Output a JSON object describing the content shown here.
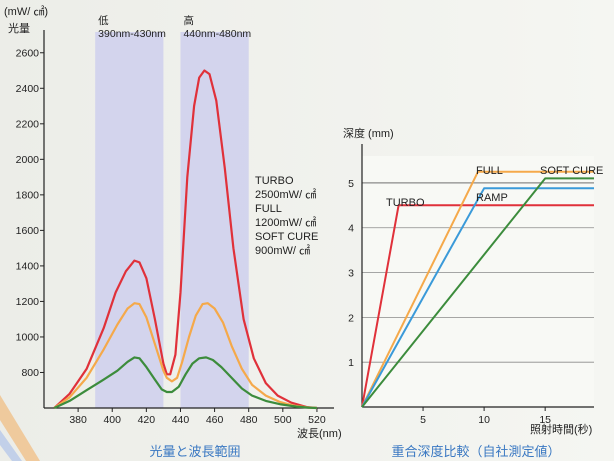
{
  "chart_data": [
    {
      "type": "line",
      "unit_label": "(mW/ ㎠)",
      "ylabel": "光量",
      "xlabel": "波長(nm)",
      "caption": "光量と波長範囲",
      "xlim": [
        360,
        530
      ],
      "ylim": [
        600,
        2700
      ],
      "x_ticks": [
        380,
        400,
        420,
        440,
        460,
        480,
        500,
        520
      ],
      "y_ticks": [
        800,
        1000,
        1200,
        1400,
        1600,
        1800,
        2000,
        2200,
        2400,
        2600
      ],
      "bands": [
        {
          "label": "低",
          "range_label": "390nm-430nm",
          "x0": 390,
          "x1": 430
        },
        {
          "label": "高",
          "range_label": "440nm-480nm",
          "x0": 440,
          "x1": 480
        }
      ],
      "series": [
        {
          "name": "TURBO",
          "value_label": "2500mW/ ㎠",
          "color": "#e0313a",
          "points": [
            [
              366,
              600
            ],
            [
              375,
              680
            ],
            [
              385,
              820
            ],
            [
              395,
              1050
            ],
            [
              402,
              1250
            ],
            [
              408,
              1370
            ],
            [
              413,
              1430
            ],
            [
              416,
              1420
            ],
            [
              420,
              1330
            ],
            [
              425,
              1100
            ],
            [
              430,
              850
            ],
            [
              432,
              790
            ],
            [
              434,
              790
            ],
            [
              437,
              900
            ],
            [
              440,
              1250
            ],
            [
              444,
              1900
            ],
            [
              448,
              2300
            ],
            [
              451,
              2460
            ],
            [
              454,
              2500
            ],
            [
              457,
              2480
            ],
            [
              461,
              2330
            ],
            [
              466,
              1950
            ],
            [
              471,
              1500
            ],
            [
              477,
              1100
            ],
            [
              483,
              880
            ],
            [
              490,
              740
            ],
            [
              497,
              670
            ],
            [
              505,
              630
            ],
            [
              514,
              605
            ],
            [
              520,
              600
            ]
          ]
        },
        {
          "name": "FULL",
          "value_label": "1200mW/ ㎠",
          "color": "#f5a94a",
          "points": [
            [
              366,
              600
            ],
            [
              375,
              660
            ],
            [
              385,
              770
            ],
            [
              395,
              930
            ],
            [
              403,
              1070
            ],
            [
              409,
              1160
            ],
            [
              413,
              1190
            ],
            [
              416,
              1185
            ],
            [
              420,
              1110
            ],
            [
              425,
              960
            ],
            [
              430,
              810
            ],
            [
              432,
              770
            ],
            [
              435,
              750
            ],
            [
              438,
              770
            ],
            [
              441,
              860
            ],
            [
              445,
              1000
            ],
            [
              449,
              1120
            ],
            [
              453,
              1185
            ],
            [
              456,
              1190
            ],
            [
              460,
              1160
            ],
            [
              465,
              1080
            ],
            [
              470,
              950
            ],
            [
              476,
              820
            ],
            [
              482,
              730
            ],
            [
              490,
              670
            ],
            [
              498,
              635
            ],
            [
              507,
              612
            ],
            [
              515,
              603
            ],
            [
              520,
              600
            ]
          ]
        },
        {
          "name": "SOFT CURE",
          "value_label": "900mW/ ㎠",
          "color": "#3c8c3c",
          "points": [
            [
              366,
              600
            ],
            [
              375,
              640
            ],
            [
              385,
              700
            ],
            [
              395,
              760
            ],
            [
              403,
              810
            ],
            [
              409,
              860
            ],
            [
              413,
              885
            ],
            [
              416,
              880
            ],
            [
              420,
              830
            ],
            [
              425,
              760
            ],
            [
              429,
              705
            ],
            [
              432,
              690
            ],
            [
              435,
              690
            ],
            [
              439,
              720
            ],
            [
              443,
              790
            ],
            [
              447,
              850
            ],
            [
              451,
              880
            ],
            [
              455,
              885
            ],
            [
              459,
              870
            ],
            [
              464,
              830
            ],
            [
              470,
              770
            ],
            [
              476,
              710
            ],
            [
              482,
              670
            ],
            [
              490,
              640
            ],
            [
              499,
              620
            ],
            [
              508,
              608
            ],
            [
              515,
              602
            ],
            [
              520,
              600
            ]
          ]
        }
      ]
    },
    {
      "type": "line",
      "ylabel": "深度 (mm)",
      "xlabel": "照射時間(秒)",
      "caption": "重合深度比較（自社測定値）",
      "xlim": [
        0,
        19
      ],
      "ylim": [
        0,
        5.6
      ],
      "x_ticks": [
        5,
        10,
        15
      ],
      "y_ticks": [
        1,
        2,
        3,
        4,
        5
      ],
      "series": [
        {
          "name": "TURBO",
          "color": "#e0313a",
          "points": [
            [
              0,
              0
            ],
            [
              3,
              4.5
            ],
            [
              19,
              4.5
            ]
          ]
        },
        {
          "name": "FULL",
          "color": "#f5a94a",
          "points": [
            [
              0,
              0
            ],
            [
              9.5,
              5.25
            ],
            [
              19,
              5.25
            ]
          ]
        },
        {
          "name": "RAMP",
          "color": "#3a9ad9",
          "points": [
            [
              0,
              0
            ],
            [
              10,
              4.88
            ],
            [
              19,
              4.88
            ]
          ]
        },
        {
          "name": "SOFT CURE",
          "color": "#3c8c3c",
          "points": [
            [
              0,
              0
            ],
            [
              15,
              5.1
            ],
            [
              19,
              5.1
            ]
          ]
        }
      ]
    }
  ]
}
